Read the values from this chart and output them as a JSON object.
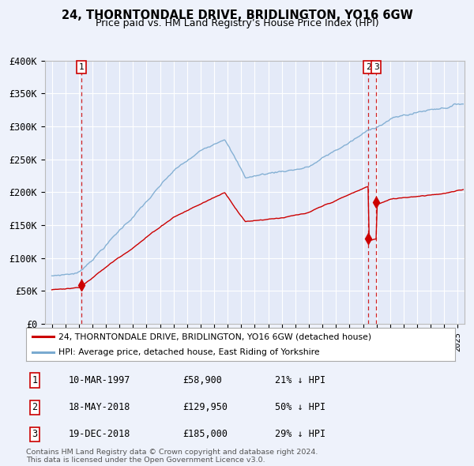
{
  "title": "24, THORNTONDALE DRIVE, BRIDLINGTON, YO16 6GW",
  "subtitle": "Price paid vs. HM Land Registry’s House Price Index (HPI)",
  "ylim": [
    0,
    400000
  ],
  "yticks": [
    0,
    50000,
    100000,
    150000,
    200000,
    250000,
    300000,
    350000,
    400000
  ],
  "ytick_labels": [
    "£0",
    "£50K",
    "£100K",
    "£150K",
    "£200K",
    "£250K",
    "£300K",
    "£350K",
    "£400K"
  ],
  "xlim_start": 1994.5,
  "xlim_end": 2025.5,
  "background_color": "#eef2fb",
  "plot_bg_color": "#e4eaf8",
  "grid_color": "#ffffff",
  "sale_color": "#cc0000",
  "hpi_color": "#7aaad0",
  "sale_years_dec": [
    1997.19,
    2018.38,
    2018.97
  ],
  "sale_prices": [
    58900,
    129950,
    185000
  ],
  "sale_labels": [
    "1",
    "2",
    "3"
  ],
  "legend_property": "24, THORNTONDALE DRIVE, BRIDLINGTON, YO16 6GW (detached house)",
  "legend_hpi": "HPI: Average price, detached house, East Riding of Yorkshire",
  "sale_table": [
    {
      "num": "1",
      "date": "10-MAR-1997",
      "price": "£58,900",
      "hpi": "21% ↓ HPI"
    },
    {
      "num": "2",
      "date": "18-MAY-2018",
      "price": "£129,950",
      "hpi": "50% ↓ HPI"
    },
    {
      "num": "3",
      "date": "19-DEC-2018",
      "price": "£185,000",
      "hpi": "29% ↓ HPI"
    }
  ],
  "copyright_text": "Contains HM Land Registry data © Crown copyright and database right 2024.\nThis data is licensed under the Open Government Licence v3.0."
}
